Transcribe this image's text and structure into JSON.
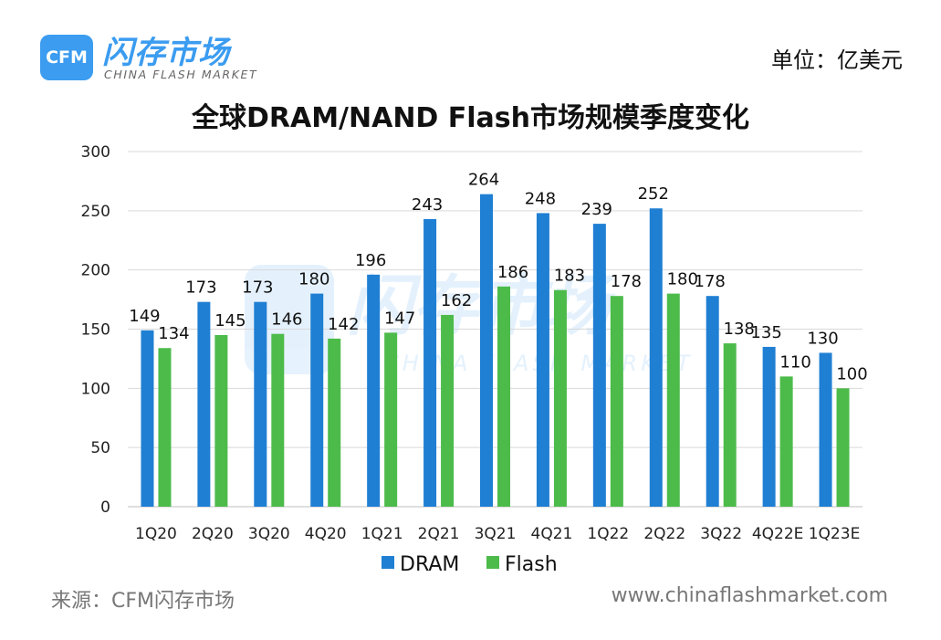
{
  "brand": {
    "badge": "CFM",
    "name": "闪存市场",
    "subtitle": "CHINA FLASH MARKET"
  },
  "unit_label": "单位：亿美元",
  "footer": {
    "source": "来源：CFM闪存市场",
    "url": "www.chinaflashmarket.com"
  },
  "colors": {
    "dram": "#1f7fd3",
    "flash": "#4cbb4a",
    "grid": "#d9d9d9",
    "brand": "#3b9cf0"
  },
  "chart_data": {
    "type": "bar",
    "title": "全球DRAM/NAND Flash市场规模季度变化",
    "xlabel": "",
    "ylabel": "",
    "ylim": [
      0,
      300
    ],
    "yticks": [
      0,
      50,
      100,
      150,
      200,
      250,
      300
    ],
    "grid": true,
    "legend_position": "bottom",
    "categories": [
      "1Q20",
      "2Q20",
      "3Q20",
      "4Q20",
      "1Q21",
      "2Q21",
      "3Q21",
      "4Q21",
      "1Q22",
      "2Q22",
      "3Q22",
      "4Q22E",
      "1Q23E"
    ],
    "series": [
      {
        "name": "DRAM",
        "values": [
          149,
          173,
          173,
          180,
          196,
          243,
          264,
          248,
          239,
          252,
          178,
          135,
          130
        ]
      },
      {
        "name": "Flash",
        "values": [
          134,
          145,
          146,
          142,
          147,
          162,
          186,
          183,
          178,
          180,
          138,
          110,
          100
        ]
      }
    ]
  }
}
